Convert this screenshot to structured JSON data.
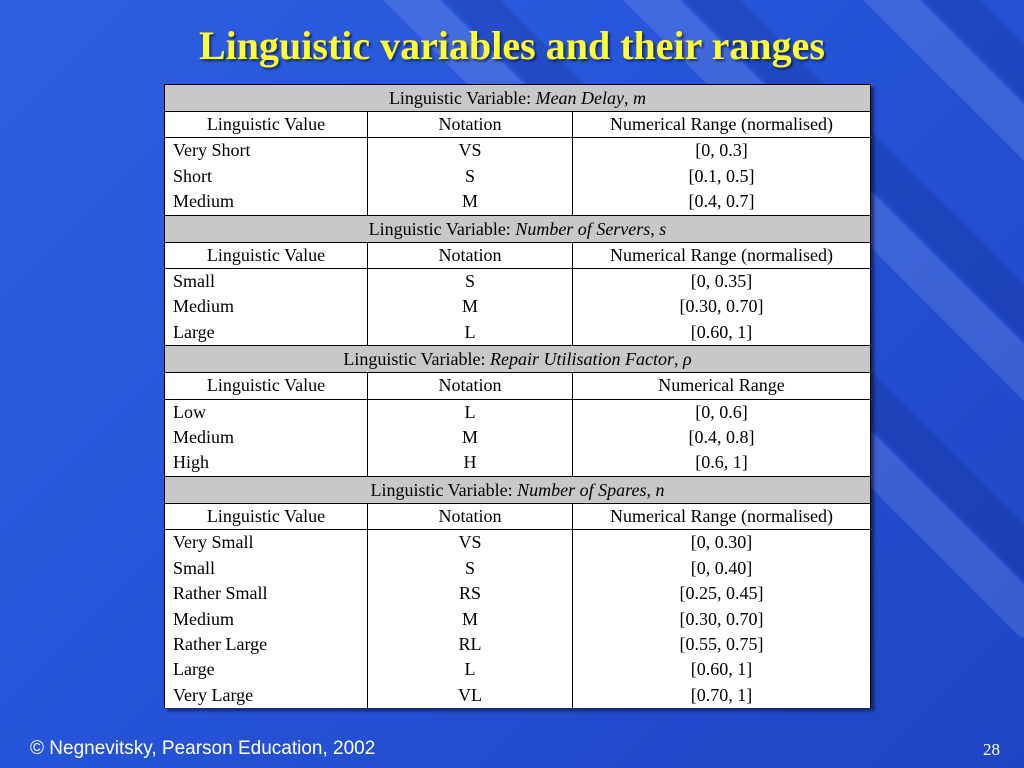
{
  "slide": {
    "title": "Linguistic variables and their ranges",
    "footer": "© Negnevitsky, Pearson Education, 2002",
    "page_number": "28"
  },
  "tables": [
    {
      "var_prefix": "Linguistic Variable: ",
      "var_name": "Mean Delay",
      "var_symbol": "m",
      "headers": [
        "Linguistic Value",
        "Notation",
        "Numerical Range (normalised)"
      ],
      "rows": [
        [
          "Very Short",
          "VS",
          "[0, 0.3]"
        ],
        [
          "Short",
          "S",
          "[0.1, 0.5]"
        ],
        [
          "Medium",
          "M",
          "[0.4, 0.7]"
        ]
      ]
    },
    {
      "var_prefix": "Linguistic Variable: ",
      "var_name": "Number of Servers",
      "var_symbol": "s",
      "headers": [
        "Linguistic Value",
        "Notation",
        "Numerical Range (normalised)"
      ],
      "rows": [
        [
          "Small",
          "S",
          "[0, 0.35]"
        ],
        [
          "Medium",
          "M",
          "[0.30, 0.70]"
        ],
        [
          "Large",
          "L",
          "[0.60, 1]"
        ]
      ]
    },
    {
      "var_prefix": "Linguistic Variable: ",
      "var_name": "Repair Utilisation Factor",
      "var_symbol": "ρ",
      "headers": [
        "Linguistic Value",
        "Notation",
        "Numerical Range"
      ],
      "rows": [
        [
          "Low",
          "L",
          "[0, 0.6]"
        ],
        [
          "Medium",
          "M",
          "[0.4, 0.8]"
        ],
        [
          "High",
          "H",
          "[0.6, 1]"
        ]
      ]
    },
    {
      "var_prefix": "Linguistic Variable: ",
      "var_name": "Number of Spares",
      "var_symbol": "n",
      "headers": [
        "Linguistic Value",
        "Notation",
        "Numerical Range (normalised)"
      ],
      "rows": [
        [
          "Very Small",
          "VS",
          "[0, 0.30]"
        ],
        [
          "Small",
          "S",
          "[0, 0.40]"
        ],
        [
          "Rather Small",
          "RS",
          "[0.25, 0.45]"
        ],
        [
          "Medium",
          "M",
          "[0.30, 0.70]"
        ],
        [
          "Rather Large",
          "RL",
          "[0.55, 0.75]"
        ],
        [
          "Large",
          "L",
          "[0.60, 1]"
        ],
        [
          "Very Large",
          "VL",
          "[0.70, 1]"
        ]
      ]
    }
  ],
  "colors": {
    "background": "#2554d8",
    "title": "#ffff33",
    "variable_row": "#c8c8c8"
  }
}
